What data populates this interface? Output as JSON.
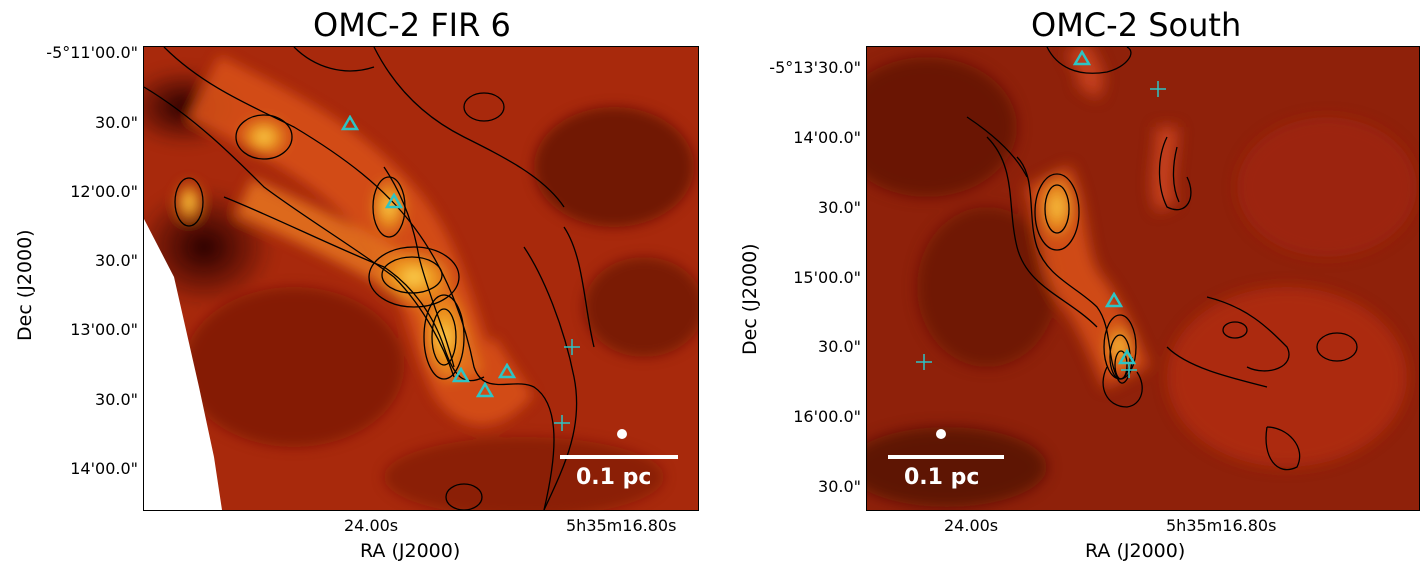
{
  "figure": {
    "panels": [
      {
        "title": "OMC-2 FIR 6",
        "yticks": [
          "-5°11'00.0\"",
          "30.0\"",
          "12'00.0\"",
          "30.0\"",
          "13'00.0\"",
          "30.0\"",
          "14'00.0\""
        ],
        "xticks": [
          "24.00s",
          "5h35m16.80s"
        ],
        "xlabel": "RA (J2000)",
        "ylabel": "Dec (J2000)",
        "scalebar": "0.1 pc"
      },
      {
        "title": "OMC-2 South",
        "yticks": [
          "-5°13'30.0\"",
          "14'00.0\"",
          "30.0\"",
          "15'00.0\"",
          "30.0\"",
          "16'00.0\"",
          "30.0\""
        ],
        "xticks": [
          "24.00s",
          "5h35m16.80s"
        ],
        "xlabel": "RA (J2000)",
        "ylabel": "Dec (J2000)",
        "scalebar": "0.1 pc"
      }
    ],
    "colors": {
      "background_dark": "#3a0805",
      "map_mid": "#b8300e",
      "map_bright": "#f0a020",
      "map_peak": "#ffe060",
      "marker": "#2ec4c4",
      "contour": "#000000"
    },
    "marker_icon": "triangle-marker-icon",
    "cross_icon": "cross-marker-icon"
  }
}
